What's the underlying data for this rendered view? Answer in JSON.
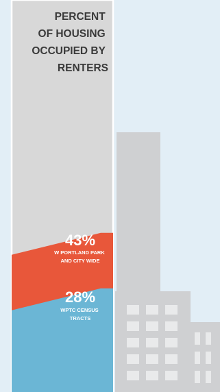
{
  "chart_data": {
    "type": "area",
    "title": "PERCENT OF HOUSING OCCUPIED BY RENTERS",
    "title_lines": [
      "PERCENT",
      "OF HOUSING",
      "OCCUPIED BY",
      "RENTERS"
    ],
    "ylim": [
      0,
      100
    ],
    "series": [
      {
        "name": "W PORTLAND PARK AND CITY WIDE",
        "name_lines": [
          "W PORTLAND PARK",
          "AND CITY WIDE"
        ],
        "value": 43,
        "value_label": "43%",
        "color": "#e8573a"
      },
      {
        "name": "WPTC CENSUS TRACTS",
        "name_lines": [
          "WPTC CENSUS",
          "TRACTS"
        ],
        "value": 28,
        "value_label": "28%",
        "color": "#6bb6d5"
      }
    ]
  },
  "colors": {
    "background": "#e2eef6",
    "tower": "#d8d8d8",
    "tower_border": "#ffffff",
    "buildings": "#cfd0d2",
    "windows": "#e9eaeb",
    "title_text": "#3a3a3a",
    "label_text": "#ffffff"
  }
}
